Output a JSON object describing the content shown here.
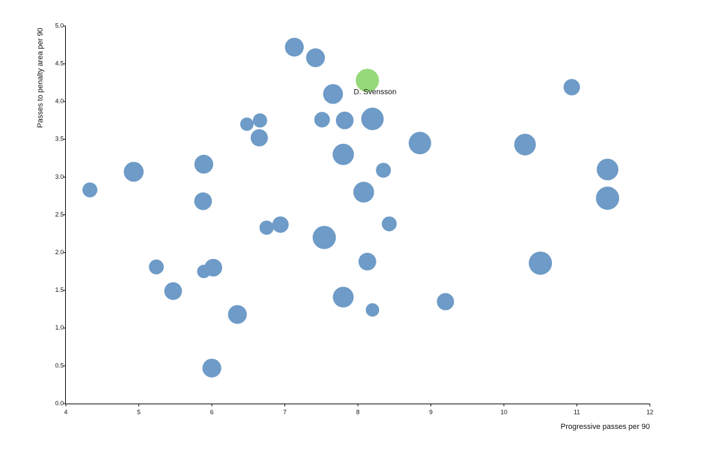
{
  "chart_data": {
    "type": "scatter",
    "title": "",
    "xlabel": "Progressive passes per 90",
    "ylabel": "Passes to penalty area per 90",
    "xlim": [
      4,
      12
    ],
    "ylim": [
      0,
      5
    ],
    "x_ticks": [
      "4",
      "5",
      "6",
      "7",
      "8",
      "9",
      "10",
      "11",
      "12"
    ],
    "y_ticks": [
      "0.0",
      "0.5",
      "1.0",
      "1.5",
      "2.0",
      "2.5",
      "3.0",
      "3.5",
      "4.0",
      "4.5",
      "5.0"
    ],
    "grid": false,
    "colors": {
      "default": "#6e9bc7",
      "highlight": "#96d97a"
    },
    "highlight_label": "D. Svensson",
    "points": [
      {
        "x": 4.33,
        "y": 2.83,
        "size": 1
      },
      {
        "x": 4.93,
        "y": 3.07,
        "size": 3
      },
      {
        "x": 5.24,
        "y": 1.81,
        "size": 1
      },
      {
        "x": 5.47,
        "y": 1.49,
        "size": 2
      },
      {
        "x": 5.88,
        "y": 2.68,
        "size": 2
      },
      {
        "x": 5.89,
        "y": 3.17,
        "size": 2.5
      },
      {
        "x": 5.89,
        "y": 1.75,
        "size": 0.6
      },
      {
        "x": 6.02,
        "y": 1.8,
        "size": 2
      },
      {
        "x": 6.0,
        "y": 0.47,
        "size": 2.5
      },
      {
        "x": 6.35,
        "y": 1.18,
        "size": 2.5
      },
      {
        "x": 6.48,
        "y": 3.7,
        "size": 0.6
      },
      {
        "x": 6.66,
        "y": 3.75,
        "size": 0.8
      },
      {
        "x": 6.65,
        "y": 3.52,
        "size": 1.8
      },
      {
        "x": 6.75,
        "y": 2.33,
        "size": 0.8
      },
      {
        "x": 6.94,
        "y": 2.37,
        "size": 1.5
      },
      {
        "x": 7.13,
        "y": 4.72,
        "size": 2.5
      },
      {
        "x": 7.42,
        "y": 4.58,
        "size": 2.5
      },
      {
        "x": 7.51,
        "y": 3.76,
        "size": 1.2
      },
      {
        "x": 7.54,
        "y": 2.2,
        "size": 5
      },
      {
        "x": 7.66,
        "y": 4.1,
        "size": 3
      },
      {
        "x": 7.8,
        "y": 3.3,
        "size": 3.8
      },
      {
        "x": 7.8,
        "y": 1.41,
        "size": 3.5
      },
      {
        "x": 7.82,
        "y": 3.75,
        "size": 2
      },
      {
        "x": 8.08,
        "y": 2.8,
        "size": 3.5
      },
      {
        "x": 8.13,
        "y": 1.88,
        "size": 2
      },
      {
        "x": 8.13,
        "y": 4.28,
        "size": 5,
        "highlight": true,
        "label": "D. Svensson"
      },
      {
        "x": 8.2,
        "y": 3.77,
        "size": 4.5
      },
      {
        "x": 8.2,
        "y": 1.24,
        "size": 0.6
      },
      {
        "x": 8.35,
        "y": 3.09,
        "size": 1
      },
      {
        "x": 8.43,
        "y": 2.38,
        "size": 1
      },
      {
        "x": 8.85,
        "y": 3.45,
        "size": 4.5
      },
      {
        "x": 9.2,
        "y": 1.35,
        "size": 1.8
      },
      {
        "x": 10.29,
        "y": 3.43,
        "size": 4
      },
      {
        "x": 10.5,
        "y": 1.86,
        "size": 5
      },
      {
        "x": 10.93,
        "y": 4.19,
        "size": 1.5
      },
      {
        "x": 11.42,
        "y": 3.1,
        "size": 4
      },
      {
        "x": 11.42,
        "y": 2.72,
        "size": 5
      }
    ]
  }
}
